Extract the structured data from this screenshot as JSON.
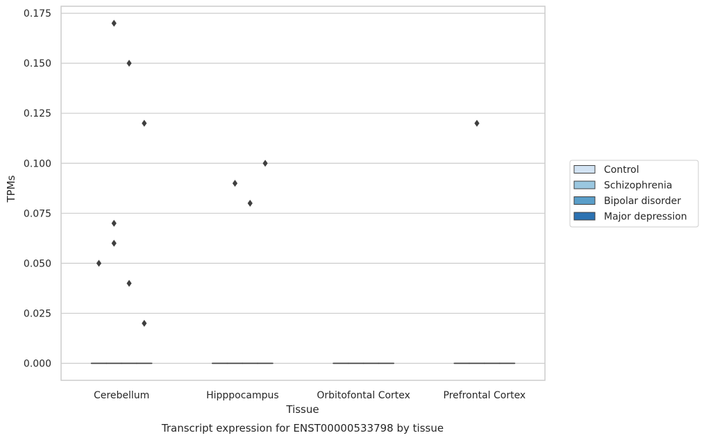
{
  "chart_data": {
    "type": "box",
    "title": "",
    "caption": "Transcript expression for ENST00000533798 by tissue",
    "xlabel": "Tissue",
    "ylabel": "TPMs",
    "ylim": [
      -0.0085,
      0.1785
    ],
    "yticks": [
      "0.000",
      "0.025",
      "0.050",
      "0.075",
      "0.100",
      "0.125",
      "0.150",
      "0.175"
    ],
    "ytick_values": [
      0,
      0.025,
      0.05,
      0.075,
      0.1,
      0.125,
      0.15,
      0.175
    ],
    "categories": [
      "Cerebellum",
      "Hipppocampus",
      "Orbitofontal Cortex",
      "Prefrontal Cortex"
    ],
    "grid": true,
    "legend_position": "right",
    "series": [
      {
        "name": "Control",
        "color": "#d2e3f3",
        "boxes": [
          {
            "median": 0,
            "q1": 0,
            "q3": 0,
            "whisker_low": 0,
            "whisker_high": 0,
            "outliers": [
              0.05
            ]
          },
          {
            "median": 0,
            "q1": 0,
            "q3": 0,
            "whisker_low": 0,
            "whisker_high": 0,
            "outliers": []
          },
          {
            "median": 0,
            "q1": 0,
            "q3": 0,
            "whisker_low": 0,
            "whisker_high": 0,
            "outliers": []
          },
          {
            "median": 0,
            "q1": 0,
            "q3": 0,
            "whisker_low": 0,
            "whisker_high": 0,
            "outliers": []
          }
        ]
      },
      {
        "name": "Schizophrenia",
        "color": "#9ac7e0",
        "boxes": [
          {
            "median": 0,
            "q1": 0,
            "q3": 0,
            "whisker_low": 0,
            "whisker_high": 0,
            "outliers": [
              0.17,
              0.07,
              0.06
            ]
          },
          {
            "median": 0,
            "q1": 0,
            "q3": 0,
            "whisker_low": 0,
            "whisker_high": 0,
            "outliers": [
              0.09
            ]
          },
          {
            "median": 0,
            "q1": 0,
            "q3": 0,
            "whisker_low": 0,
            "whisker_high": 0,
            "outliers": []
          },
          {
            "median": 0,
            "q1": 0,
            "q3": 0,
            "whisker_low": 0,
            "whisker_high": 0,
            "outliers": [
              0.12
            ]
          }
        ]
      },
      {
        "name": "Bipolar disorder",
        "color": "#5a9ec9",
        "boxes": [
          {
            "median": 0,
            "q1": 0,
            "q3": 0,
            "whisker_low": 0,
            "whisker_high": 0,
            "outliers": [
              0.15,
              0.04
            ]
          },
          {
            "median": 0,
            "q1": 0,
            "q3": 0,
            "whisker_low": 0,
            "whisker_high": 0,
            "outliers": [
              0.08
            ]
          },
          {
            "median": 0,
            "q1": 0,
            "q3": 0,
            "whisker_low": 0,
            "whisker_high": 0,
            "outliers": []
          },
          {
            "median": 0,
            "q1": 0,
            "q3": 0,
            "whisker_low": 0,
            "whisker_high": 0,
            "outliers": []
          }
        ]
      },
      {
        "name": "Major depression",
        "color": "#2c72b2",
        "boxes": [
          {
            "median": 0,
            "q1": 0,
            "q3": 0,
            "whisker_low": 0,
            "whisker_high": 0,
            "outliers": [
              0.12,
              0.02
            ]
          },
          {
            "median": 0,
            "q1": 0,
            "q3": 0,
            "whisker_low": 0,
            "whisker_high": 0,
            "outliers": [
              0.1
            ]
          },
          {
            "median": 0,
            "q1": 0,
            "q3": 0,
            "whisker_low": 0,
            "whisker_high": 0,
            "outliers": []
          },
          {
            "median": 0,
            "q1": 0,
            "q3": 0,
            "whisker_low": 0,
            "whisker_high": 0,
            "outliers": []
          }
        ]
      }
    ]
  }
}
